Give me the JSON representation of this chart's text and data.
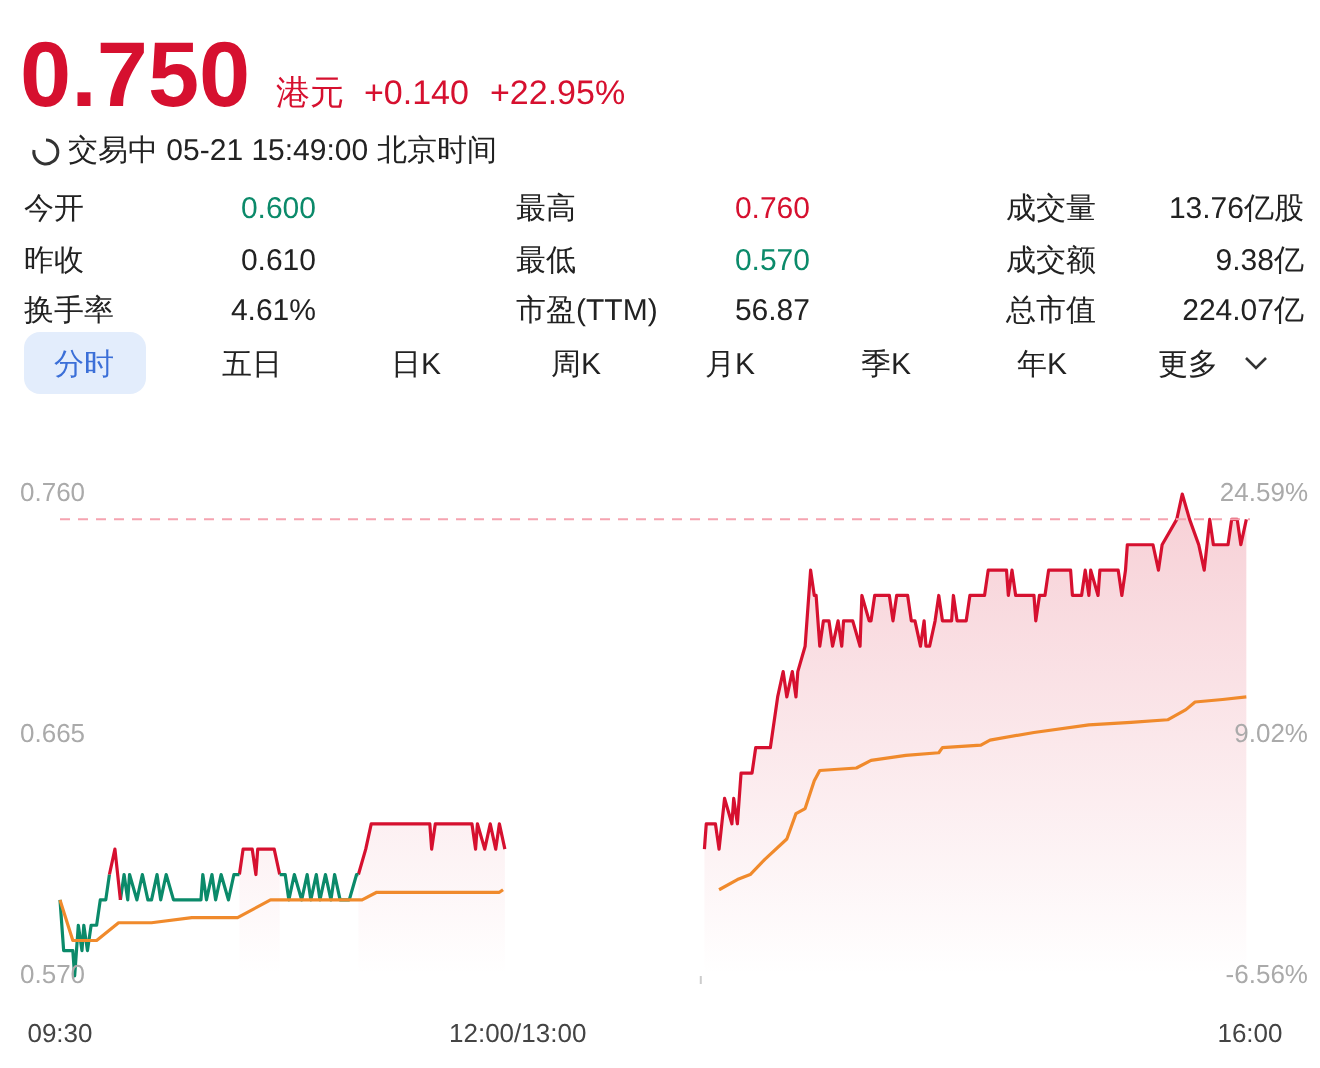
{
  "chart_data": {
    "type": "line",
    "title": "0.750",
    "annotations": [
      "港元",
      "+0.140",
      "+22.95%",
      "交易中 05-21 15:49:00 北京时间",
      "今开",
      "0.600",
      "最高",
      "0.760",
      "成交量",
      "13.76亿股",
      "昨收",
      "0.610",
      "最低",
      "0.570",
      "成交额",
      "9.38亿",
      "换手率",
      "4.61%",
      "市盈(TTM)",
      "56.87",
      "总市值",
      "224.07亿",
      "分时",
      "五日",
      "日K",
      "周K",
      "月K",
      "季K",
      "年K",
      "更多"
    ],
    "xlim": [
      9.5,
      16
    ],
    "xticks": [
      {
        "value": 9.5,
        "label": "09:30"
      },
      {
        "value": 12,
        "label": "12:00/13:00"
      },
      {
        "value": 13,
        "label": null
      },
      {
        "value": 16,
        "label": "16:00"
      }
    ],
    "ylim": [
      0.57,
      0.76
    ],
    "yticks": [
      {
        "value": 0.57,
        "label": "0.570"
      },
      {
        "value": 0.665,
        "label": "0.665"
      },
      {
        "value": 0.76,
        "label": "0.760"
      }
    ],
    "y2lim": [
      -6.56,
      24.59
    ],
    "y2ticks": [
      {
        "value": -6.56,
        "label": "-6.56%"
      },
      {
        "value": 9.02,
        "label": "9.02%"
      },
      {
        "value": 24.59,
        "label": "24.59%"
      }
    ],
    "ref_lines": [
      {
        "axis": "y",
        "value": 0.75,
        "color": "#f5a3b0",
        "line_style": "dashed"
      }
    ],
    "grid": false,
    "marker": "none",
    "series": [
      {
        "type": "area",
        "color": "#d6102f",
        "x": [
          10.48,
          10.5,
          10.55,
          10.57,
          10.58,
          10.67,
          10.7,
          10.72,
          11.13,
          11.17,
          11.2,
          11.52,
          11.53,
          11.55,
          11.75,
          11.77,
          11.78,
          11.82,
          11.85,
          11.88,
          11.9,
          11.93,
          12.5,
          13.02,
          13.03,
          13.08,
          13.1,
          13.13,
          13.17,
          13.18,
          13.2,
          13.22,
          13.28,
          13.3,
          13.38,
          13.42,
          13.45,
          13.47,
          13.5,
          13.52,
          13.53,
          13.57,
          13.6,
          13.62,
          13.63,
          13.65,
          13.67,
          13.7,
          13.72,
          13.75,
          13.77,
          13.78,
          13.83,
          13.87,
          13.88,
          13.92,
          13.93,
          13.95,
          14.03,
          14.05,
          14.07,
          14.13,
          14.15,
          14.17,
          14.2,
          14.22,
          14.23,
          14.25,
          14.28,
          14.3,
          14.32,
          14.37,
          14.38,
          14.4,
          14.45,
          14.47,
          14.55,
          14.57,
          14.67,
          14.68,
          14.7,
          14.72,
          14.82,
          14.83,
          14.85,
          14.88,
          14.9,
          15.02,
          15.03,
          15.08,
          15.1,
          15.12,
          15.13,
          15.17,
          15.18,
          15.28,
          15.3,
          15.32,
          15.33,
          15.47,
          15.5,
          15.52,
          15.6,
          15.63,
          15.67,
          15.72,
          15.75,
          15.78,
          15.8,
          15.88,
          15.9,
          15.93,
          15.95,
          15.98
        ],
        "values": [
          0.61,
          0.62,
          0.62,
          0.61,
          0.62,
          0.62,
          0.61,
          null,
          0.61,
          0.62,
          0.63,
          0.63,
          0.62,
          0.63,
          0.63,
          0.62,
          0.63,
          0.62,
          0.63,
          0.62,
          0.63,
          0.62,
          null,
          0.62,
          0.63,
          0.63,
          0.62,
          0.64,
          0.63,
          0.64,
          0.63,
          0.65,
          0.65,
          0.66,
          0.66,
          0.68,
          0.69,
          0.68,
          0.69,
          0.68,
          0.69,
          0.7,
          0.73,
          0.72,
          0.72,
          0.7,
          0.71,
          0.71,
          0.7,
          0.71,
          0.7,
          0.71,
          0.71,
          0.7,
          0.72,
          0.71,
          0.71,
          0.72,
          0.72,
          0.71,
          0.72,
          0.72,
          0.71,
          0.71,
          0.7,
          0.71,
          0.7,
          0.7,
          0.71,
          0.72,
          0.71,
          0.71,
          0.72,
          0.71,
          0.71,
          0.72,
          0.72,
          0.73,
          0.73,
          0.72,
          0.73,
          0.72,
          0.72,
          0.71,
          0.72,
          0.72,
          0.73,
          0.73,
          0.72,
          0.72,
          0.73,
          0.72,
          0.73,
          0.72,
          0.73,
          0.73,
          0.72,
          0.73,
          0.74,
          0.74,
          0.73,
          0.74,
          0.75,
          0.76,
          0.75,
          0.74,
          0.73,
          0.75,
          0.74,
          0.74,
          0.75,
          0.75,
          0.74,
          0.75
        ]
      },
      {
        "color": "#0b8a6a",
        "x": [
          9.5,
          9.52,
          9.57,
          9.58,
          9.6,
          9.62,
          9.63,
          9.65,
          9.67,
          9.7,
          9.72,
          9.75,
          9.77,
          9.8,
          9.83,
          9.85,
          9.87,
          9.88,
          9.92,
          9.95,
          9.98,
          10,
          10.03,
          10.05,
          10.08,
          10.12,
          10.27,
          10.28,
          10.3,
          10.33,
          10.35,
          10.38,
          10.42,
          10.45,
          10.48,
          10.5,
          10.7,
          10.73,
          10.75,
          10.78,
          10.82,
          10.85,
          10.87,
          10.9,
          10.92,
          10.95,
          10.98,
          11,
          11.03,
          11.08,
          11.12,
          11.13
        ],
        "values": [
          0.6,
          0.58,
          0.58,
          0.57,
          0.59,
          0.58,
          0.59,
          0.58,
          0.59,
          0.59,
          0.6,
          0.6,
          0.61,
          null,
          0.6,
          0.61,
          0.6,
          0.61,
          0.6,
          0.61,
          0.6,
          0.6,
          0.61,
          0.6,
          0.61,
          0.6,
          0.6,
          0.61,
          0.6,
          0.61,
          0.6,
          0.61,
          0.6,
          0.61,
          0.61,
          null,
          0.61,
          0.61,
          0.6,
          0.61,
          0.6,
          0.61,
          0.6,
          0.61,
          0.6,
          0.61,
          0.6,
          0.61,
          0.6,
          0.6,
          0.61,
          0.61
        ]
      },
      {
        "color": "#d6102f",
        "x": [
          9.77,
          9.8,
          9.83
        ],
        "values": [
          0.61,
          0.62,
          0.6
        ]
      },
      {
        "color": "#f08a2c",
        "x": [
          9.5,
          9.57,
          9.7,
          9.82,
          10,
          10.22,
          10.47,
          10.65,
          11.15,
          11.23,
          11.28,
          11.9,
          11.92,
          12.5,
          13.1,
          13.2,
          13.27,
          13.35,
          13.47,
          13.52,
          13.57,
          13.62,
          13.65,
          13.85,
          13.93,
          14.12,
          14.3,
          14.32,
          14.53,
          14.58,
          14.82,
          15.12,
          15.35,
          15.55,
          15.65,
          15.7,
          15.85,
          15.98
        ],
        "values": [
          0.6,
          0.584,
          0.584,
          0.591,
          0.591,
          0.593,
          0.593,
          0.6,
          0.6,
          0.603,
          0.603,
          0.603,
          0.604,
          null,
          0.604,
          0.608,
          0.61,
          0.616,
          0.624,
          0.634,
          0.636,
          0.647,
          0.651,
          0.652,
          0.655,
          0.657,
          0.658,
          0.66,
          0.661,
          0.663,
          0.666,
          0.669,
          0.67,
          0.671,
          0.675,
          0.678,
          0.679,
          0.68
        ]
      }
    ]
  }
}
